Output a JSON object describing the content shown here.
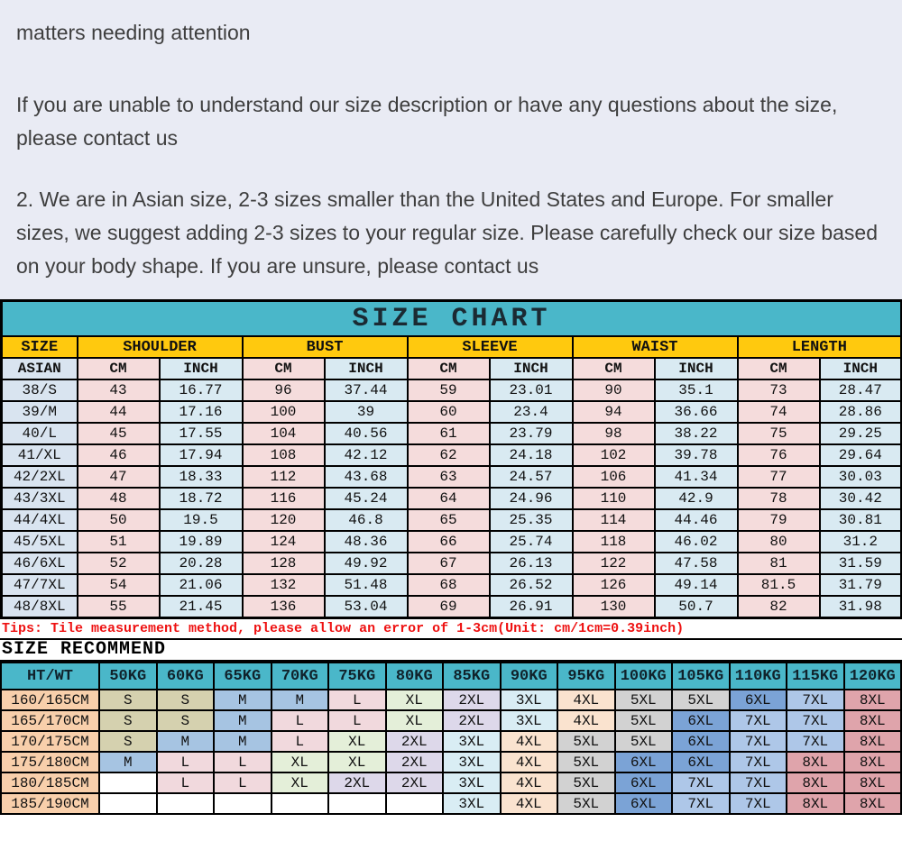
{
  "intro": {
    "heading": "matters needing attention",
    "para1": "If you are unable to understand our size description or have any questions about the size, please contact us",
    "para2": "2. We are in Asian size, 2-3 sizes smaller than the United States and Europe. For smaller sizes, we suggest adding 2-3 sizes to your regular size. Please carefully check our size based on your body shape. If you are unsure, please contact us"
  },
  "size_chart": {
    "title": "SIZE CHART",
    "groups": [
      "SIZE",
      "SHOULDER",
      "BUST",
      "SLEEVE",
      "WAIST",
      "LENGTH"
    ],
    "subheader": [
      "ASIAN",
      "CM",
      "INCH",
      "CM",
      "INCH",
      "CM",
      "INCH",
      "CM",
      "INCH",
      "CM",
      "INCH"
    ],
    "rows": [
      [
        "38/S",
        "43",
        "16.77",
        "96",
        "37.44",
        "59",
        "23.01",
        "90",
        "35.1",
        "73",
        "28.47"
      ],
      [
        "39/M",
        "44",
        "17.16",
        "100",
        "39",
        "60",
        "23.4",
        "94",
        "36.66",
        "74",
        "28.86"
      ],
      [
        "40/L",
        "45",
        "17.55",
        "104",
        "40.56",
        "61",
        "23.79",
        "98",
        "38.22",
        "75",
        "29.25"
      ],
      [
        "41/XL",
        "46",
        "17.94",
        "108",
        "42.12",
        "62",
        "24.18",
        "102",
        "39.78",
        "76",
        "29.64"
      ],
      [
        "42/2XL",
        "47",
        "18.33",
        "112",
        "43.68",
        "63",
        "24.57",
        "106",
        "41.34",
        "77",
        "30.03"
      ],
      [
        "43/3XL",
        "48",
        "18.72",
        "116",
        "45.24",
        "64",
        "24.96",
        "110",
        "42.9",
        "78",
        "30.42"
      ],
      [
        "44/4XL",
        "50",
        "19.5",
        "120",
        "46.8",
        "65",
        "25.35",
        "114",
        "44.46",
        "79",
        "30.81"
      ],
      [
        "45/5XL",
        "51",
        "19.89",
        "124",
        "48.36",
        "66",
        "25.74",
        "118",
        "46.02",
        "80",
        "31.2"
      ],
      [
        "46/6XL",
        "52",
        "20.28",
        "128",
        "49.92",
        "67",
        "26.13",
        "122",
        "47.58",
        "81",
        "31.59"
      ],
      [
        "47/7XL",
        "54",
        "21.06",
        "132",
        "51.48",
        "68",
        "26.52",
        "126",
        "49.14",
        "81.5",
        "31.79"
      ],
      [
        "48/8XL",
        "55",
        "21.45",
        "136",
        "53.04",
        "69",
        "26.91",
        "130",
        "50.7",
        "82",
        "31.98"
      ]
    ]
  },
  "tips": "Tips: Tile measurement method, please allow an error of 1-3cm(Unit: cm/1cm=0.39inch)",
  "recommend": {
    "heading": "SIZE RECOMMEND",
    "columns": [
      "HT/WT",
      "50KG",
      "60KG",
      "65KG",
      "70KG",
      "75KG",
      "80KG",
      "85KG",
      "90KG",
      "95KG",
      "100KG",
      "105KG",
      "110KG",
      "115KG",
      "120KG"
    ],
    "rows": [
      [
        "160/165CM",
        "S",
        "S",
        "M",
        "M",
        "L",
        "XL",
        "2XL",
        "3XL",
        "4XL",
        "5XL",
        "5XL",
        "6XL",
        "7XL",
        "8XL"
      ],
      [
        "165/170CM",
        "S",
        "S",
        "M",
        "L",
        "L",
        "XL",
        "2XL",
        "3XL",
        "4XL",
        "5XL",
        "6XL",
        "7XL",
        "7XL",
        "8XL"
      ],
      [
        "170/175CM",
        "S",
        "M",
        "M",
        "L",
        "XL",
        "2XL",
        "3XL",
        "4XL",
        "5XL",
        "5XL",
        "6XL",
        "7XL",
        "7XL",
        "8XL"
      ],
      [
        "175/180CM",
        "M",
        "L",
        "L",
        "XL",
        "XL",
        "2XL",
        "3XL",
        "4XL",
        "5XL",
        "6XL",
        "6XL",
        "7XL",
        "8XL",
        "8XL"
      ],
      [
        "180/185CM",
        "",
        "L",
        "L",
        "XL",
        "2XL",
        "2XL",
        "3XL",
        "4XL",
        "5XL",
        "6XL",
        "7XL",
        "7XL",
        "8XL",
        "8XL"
      ],
      [
        "185/190CM",
        "",
        "",
        "",
        "",
        "",
        "",
        "3XL",
        "4XL",
        "5XL",
        "6XL",
        "7XL",
        "7XL",
        "8XL",
        "8XL"
      ]
    ]
  },
  "colors": {
    "teal_header": "#4ab7c9",
    "gold_header": "#ffc90e",
    "cm_pink": "#f5dcdc",
    "inch_blue": "#d9eaf2",
    "size_col_blue": "#d9e4f0",
    "height_col_peach": "#f8cfab",
    "tips_red": "#ee1111",
    "intro_bg": "#e9ebf4",
    "size_cell_colors": {
      "S": "#d5d1af",
      "M": "#a6c4e2",
      "L": "#f1d9dd",
      "XL": "#e4efd9",
      "2XL": "#ddd8ea",
      "3XL": "#d9edf4",
      "4XL": "#fae3cf",
      "5XL": "#d2d2d2",
      "6XL": "#7ba3d6",
      "7XL": "#aec7e8",
      "8XL": "#dfa4ab"
    }
  }
}
